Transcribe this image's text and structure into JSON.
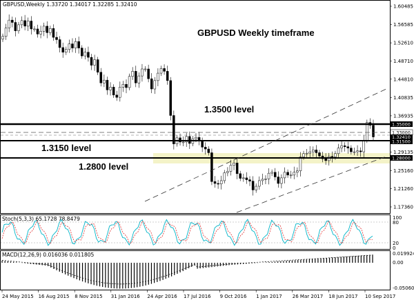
{
  "chart_header": {
    "symbol_line": "GBPUSD,Weekly  1.33720 1.34017 1.32285 1.32410",
    "title": "GBPUSD Weekly timeframe"
  },
  "annotations": {
    "level_1350": "1.3500 level",
    "level_1315": "1.3150 level",
    "level_1280": "1.2800 level"
  },
  "price_axis": {
    "ticks": [
      "1.60485",
      "1.56585",
      "1.52610",
      "1.48710",
      "1.44810",
      "1.40835",
      "1.36935",
      "1.33035",
      "1.29135",
      "1.25160",
      "1.21260",
      "1.17360"
    ],
    "tags": {
      "t1350": "1.35000",
      "t1330": "1.33000",
      "t1324": "1.32410",
      "t1315": "1.31500",
      "t1280": "1.28000"
    }
  },
  "stoch": {
    "label": "Stoch(5,3,3) 65.1728 78.8479",
    "ticks": [
      "100",
      "80",
      "20",
      "0"
    ]
  },
  "macd": {
    "label": "MACD(12,26,9) 0.016036 0.011805",
    "ticks": [
      "0.019924",
      "0.00",
      "-0.050608"
    ]
  },
  "time_axis": {
    "labels": [
      "24 May 2015",
      "16 Aug 2015",
      "8 Nov 2015",
      "31 Jan 2016",
      "24 Apr 2016",
      "17 Jul 2016",
      "9 Oct 2016",
      "1 Jan 2017",
      "26 Mar 2017",
      "18 Jun 2017",
      "10 Sep 2017"
    ]
  },
  "colors": {
    "stoch_main": "#00b4c8",
    "stoch_signal": "#e03030",
    "band": "#f4f3c8",
    "candle": "#000000"
  },
  "chart_data": {
    "type": "candlestick",
    "title": "GBPUSD Weekly timeframe",
    "symbol": "GBPUSD",
    "timeframe": "Weekly",
    "last_bar": {
      "open": 1.3372,
      "high": 1.34017,
      "low": 1.32285,
      "close": 1.3241
    },
    "y_range": [
      1.155,
      1.618
    ],
    "horizontal_levels": [
      1.35,
      1.33,
      1.3241,
      1.315,
      1.28
    ],
    "support_zone": [
      1.276,
      1.293
    ],
    "close_series_estimate": [
      1.54,
      1.558,
      1.575,
      1.57,
      1.552,
      1.565,
      1.574,
      1.562,
      1.573,
      1.556,
      1.556,
      1.545,
      1.551,
      1.562,
      1.548,
      1.557,
      1.538,
      1.533,
      1.516,
      1.506,
      1.512,
      1.524,
      1.515,
      1.529,
      1.515,
      1.498,
      1.506,
      1.495,
      1.478,
      1.49,
      1.463,
      1.44,
      1.446,
      1.425,
      1.431,
      1.414,
      1.409,
      1.431,
      1.437,
      1.43,
      1.454,
      1.465,
      1.44,
      1.455,
      1.47,
      1.47,
      1.449,
      1.427,
      1.445,
      1.461,
      1.471,
      1.465,
      1.445,
      1.37,
      1.309,
      1.322,
      1.313,
      1.313,
      1.325,
      1.31,
      1.32,
      1.323,
      1.315,
      1.302,
      1.298,
      1.29,
      1.228,
      1.224,
      1.223,
      1.23,
      1.247,
      1.25,
      1.263,
      1.268,
      1.245,
      1.235,
      1.236,
      1.232,
      1.229,
      1.21,
      1.218,
      1.23,
      1.233,
      1.234,
      1.246,
      1.248,
      1.238,
      1.224,
      1.236,
      1.248,
      1.242,
      1.242,
      1.248,
      1.251,
      1.281,
      1.288,
      1.289,
      1.292,
      1.296,
      1.29,
      1.283,
      1.277,
      1.273,
      1.282,
      1.281,
      1.288,
      1.3,
      1.305,
      1.303,
      1.3,
      1.292,
      1.292,
      1.294,
      1.292,
      1.317,
      1.355,
      1.349,
      1.324
    ],
    "stoch": {
      "main": 65.1728,
      "signal": 78.8479
    },
    "macd": {
      "main": 0.016036,
      "signal": 0.011805
    }
  }
}
